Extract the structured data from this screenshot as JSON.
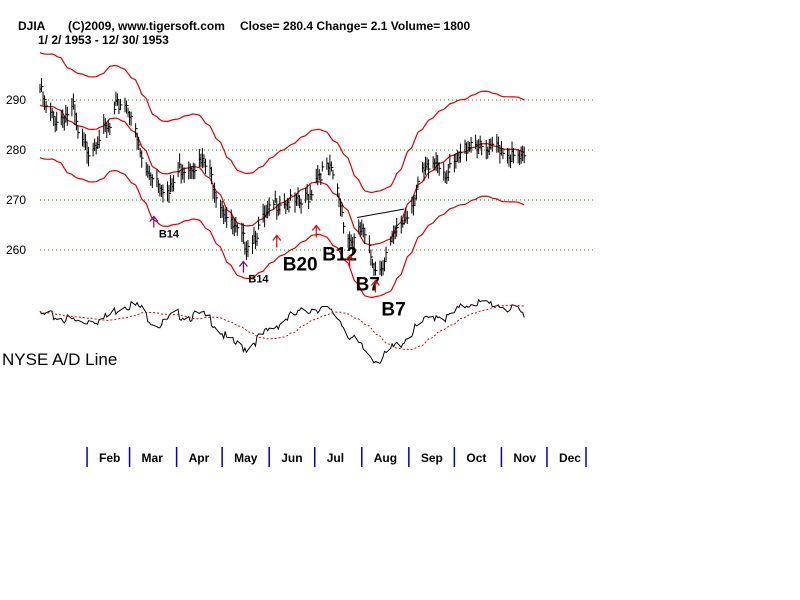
{
  "header": {
    "symbol": "DJIA",
    "copyright": "(C)2009, www.tigersoft.com",
    "stats": "Close=  280.4  Change= 2.1 Volume= 1800",
    "date_range": "1/ 2/ 1953 - 12/ 30/ 1953"
  },
  "colors": {
    "price_bars": "#000000",
    "bands": "#e00000",
    "moving_average": "#e00000",
    "grid": "#00a000",
    "month_ticks": "#0000c0",
    "ad_line": "#000000",
    "ad_ma": "#e00000",
    "buy_arrow_red": "#e00000",
    "buy_arrow_purple": "#800080",
    "trendline": "#000000"
  },
  "chart_data": [
    {
      "type": "line",
      "title": "",
      "ylim": [
        250,
        298
      ],
      "yticks": [
        260,
        270,
        280,
        290
      ],
      "grid": "dotted horizontal",
      "x_range_days": [
        0,
        365
      ],
      "months": [
        {
          "label": "Feb",
          "day": 31
        },
        {
          "label": "Mar",
          "day": 59
        },
        {
          "label": "Apr",
          "day": 90
        },
        {
          "label": "May",
          "day": 120
        },
        {
          "label": "Jun",
          "day": 151
        },
        {
          "label": "Jul",
          "day": 181
        },
        {
          "label": "Aug",
          "day": 212
        },
        {
          "label": "Sep",
          "day": 243
        },
        {
          "label": "Oct",
          "day": 273
        },
        {
          "label": "Nov",
          "day": 304
        },
        {
          "label": "Dec",
          "day": 334
        }
      ],
      "price_keypoints": [
        [
          0,
          293
        ],
        [
          5,
          288
        ],
        [
          10,
          287
        ],
        [
          15,
          287.5
        ],
        [
          22,
          289
        ],
        [
          26,
          282
        ],
        [
          32,
          281
        ],
        [
          40,
          284
        ],
        [
          46,
          285
        ],
        [
          50,
          289
        ],
        [
          55,
          291
        ],
        [
          60,
          288
        ],
        [
          65,
          281
        ],
        [
          70,
          276
        ],
        [
          75,
          276
        ],
        [
          80,
          274
        ],
        [
          85,
          272
        ],
        [
          92,
          277
        ],
        [
          100,
          278
        ],
        [
          108,
          278
        ],
        [
          112,
          276
        ],
        [
          118,
          271
        ],
        [
          125,
          266
        ],
        [
          130,
          264
        ],
        [
          136,
          262
        ],
        [
          142,
          264
        ],
        [
          148,
          267
        ],
        [
          155,
          270
        ],
        [
          160,
          271
        ],
        [
          166,
          270
        ],
        [
          172,
          270
        ],
        [
          178,
          272
        ],
        [
          182,
          276
        ],
        [
          190,
          277
        ],
        [
          194,
          275
        ],
        [
          198,
          270
        ],
        [
          202,
          264
        ],
        [
          206,
          262
        ],
        [
          212,
          265
        ],
        [
          216,
          261
        ],
        [
          220,
          258
        ],
        [
          224,
          257
        ],
        [
          228,
          260
        ],
        [
          233,
          263
        ],
        [
          238,
          266
        ],
        [
          242,
          268
        ],
        [
          246,
          271
        ],
        [
          250,
          275
        ],
        [
          256,
          277
        ],
        [
          262,
          279
        ],
        [
          268,
          276
        ],
        [
          272,
          277
        ],
        [
          276,
          279
        ],
        [
          282,
          282
        ],
        [
          286,
          283
        ],
        [
          290,
          281
        ],
        [
          296,
          280
        ],
        [
          300,
          282
        ],
        [
          306,
          281
        ],
        [
          312,
          279
        ],
        [
          320,
          279
        ]
      ],
      "band_halfwidth": 10.5,
      "ma_window": 21,
      "trendline": [
        [
          209,
          266.5
        ],
        [
          240,
          268.2
        ]
      ],
      "signals": [
        {
          "label": "B14",
          "day": 75,
          "price": 264.5,
          "size": "small",
          "color": "purple"
        },
        {
          "label": "B14",
          "day": 134,
          "price": 255.5,
          "size": "small",
          "color": "purple"
        },
        {
          "label": "B20",
          "day": 156,
          "price": 260.5,
          "size": "big",
          "color": "red"
        },
        {
          "label": "B12",
          "day": 182,
          "price": 262.5,
          "size": "big",
          "color": "red"
        },
        {
          "label": "B7",
          "day": 204,
          "price": 256.5,
          "size": "big",
          "color": "red"
        },
        {
          "label": "B7",
          "day": 221,
          "price": 251.5,
          "size": "big",
          "color": "red"
        }
      ]
    },
    {
      "type": "line",
      "title": "NYSE A/D Line",
      "ad_keypoints": [
        [
          0,
          0.75
        ],
        [
          8,
          0.74
        ],
        [
          16,
          0.72
        ],
        [
          22,
          0.7
        ],
        [
          28,
          0.68
        ],
        [
          34,
          0.72
        ],
        [
          40,
          0.7
        ],
        [
          46,
          0.75
        ],
        [
          52,
          0.82
        ],
        [
          56,
          0.85
        ],
        [
          62,
          0.84
        ],
        [
          66,
          0.82
        ],
        [
          70,
          0.75
        ],
        [
          75,
          0.68
        ],
        [
          80,
          0.66
        ],
        [
          85,
          0.72
        ],
        [
          90,
          0.76
        ],
        [
          98,
          0.74
        ],
        [
          106,
          0.75
        ],
        [
          112,
          0.72
        ],
        [
          118,
          0.62
        ],
        [
          124,
          0.52
        ],
        [
          130,
          0.48
        ],
        [
          136,
          0.45
        ],
        [
          142,
          0.52
        ],
        [
          148,
          0.58
        ],
        [
          156,
          0.66
        ],
        [
          162,
          0.72
        ],
        [
          170,
          0.76
        ],
        [
          176,
          0.8
        ],
        [
          182,
          0.82
        ],
        [
          188,
          0.8
        ],
        [
          194,
          0.76
        ],
        [
          198,
          0.7
        ],
        [
          204,
          0.56
        ],
        [
          210,
          0.48
        ],
        [
          216,
          0.4
        ],
        [
          222,
          0.34
        ],
        [
          228,
          0.38
        ],
        [
          232,
          0.45
        ],
        [
          238,
          0.5
        ],
        [
          244,
          0.58
        ],
        [
          250,
          0.66
        ],
        [
          256,
          0.72
        ],
        [
          262,
          0.76
        ],
        [
          268,
          0.72
        ],
        [
          274,
          0.78
        ],
        [
          280,
          0.84
        ],
        [
          286,
          0.88
        ],
        [
          292,
          0.84
        ],
        [
          298,
          0.86
        ],
        [
          304,
          0.84
        ],
        [
          310,
          0.8
        ],
        [
          316,
          0.78
        ],
        [
          320,
          0.74
        ]
      ],
      "ad_ma_window": 25
    }
  ]
}
